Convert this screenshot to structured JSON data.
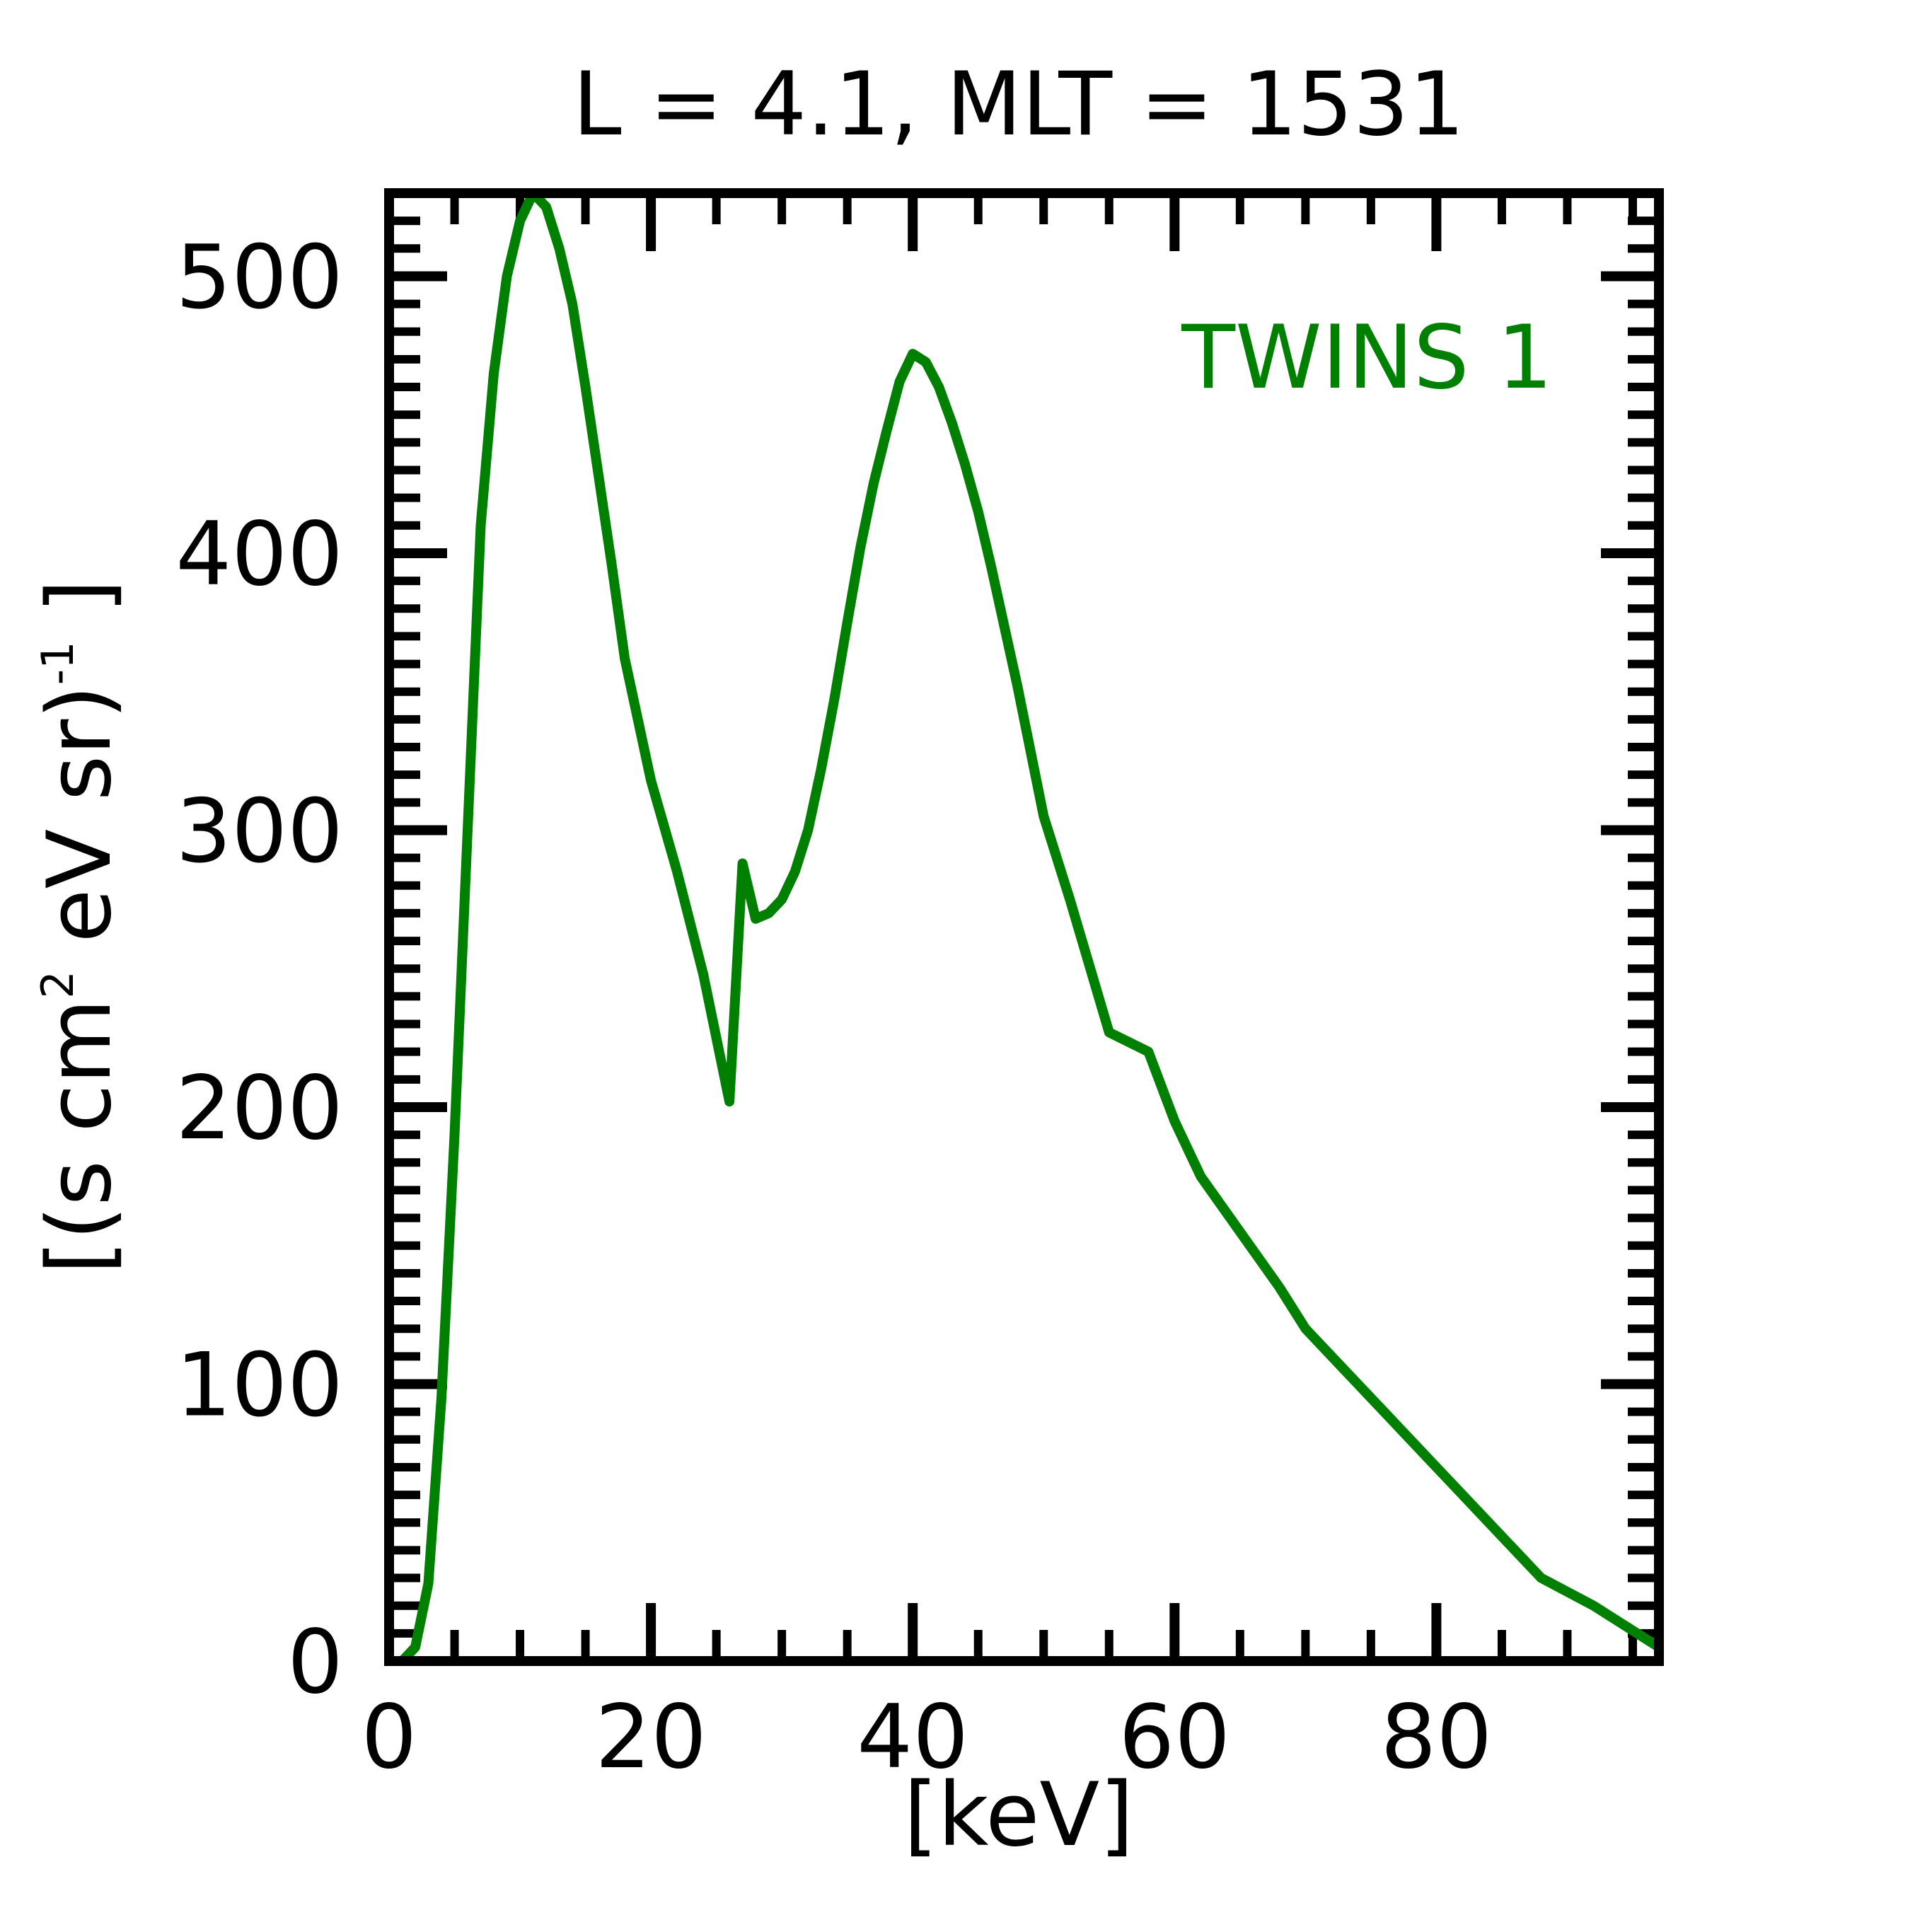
{
  "chart_data": {
    "type": "line",
    "title": "L =  4.1, MLT = 1531",
    "xlabel": "[keV]",
    "ylabel_parts": {
      "open": "[(s cm",
      "sup1": "2",
      "mid": " eV sr)",
      "sup2": "-1",
      "close": " ]"
    },
    "xlim": [
      0,
      97
    ],
    "ylim": [
      0,
      530
    ],
    "xticks": [
      0,
      20,
      40,
      60,
      80
    ],
    "xtick_labels": [
      "0",
      "20",
      "40",
      "60",
      "80"
    ],
    "yticks": [
      0,
      100,
      200,
      300,
      400,
      500
    ],
    "ytick_labels": [
      "0",
      "100",
      "200",
      "300",
      "400",
      "500"
    ],
    "legend": {
      "entries": [
        "TWINS 1"
      ],
      "placement": "top-right"
    },
    "grid": false,
    "series": [
      {
        "name": "TWINS 1",
        "color": "#008000",
        "x": [
          1,
          2,
          3,
          4,
          5,
          6,
          7,
          8,
          9,
          10,
          11,
          12,
          13,
          14,
          15,
          16,
          17,
          18,
          20,
          22,
          24,
          25,
          26,
          27,
          28,
          29,
          30,
          31,
          32,
          33,
          34,
          35,
          36,
          37,
          38,
          39,
          40,
          41,
          42,
          43,
          44,
          45,
          46,
          48,
          50,
          52,
          55,
          58,
          60,
          62,
          65,
          68,
          70,
          73,
          76,
          80,
          84,
          88,
          92,
          96,
          97
        ],
        "y": [
          0,
          5,
          28,
          95,
          190,
          300,
          410,
          465,
          500,
          520,
          530,
          525,
          510,
          490,
          460,
          428,
          396,
          362,
          318,
          285,
          248,
          225,
          202,
          288,
          268,
          270,
          275,
          285,
          300,
          322,
          347,
          375,
          402,
          425,
          444,
          462,
          472,
          469,
          460,
          447,
          432,
          415,
          395,
          352,
          305,
          275,
          227,
          220,
          195,
          175,
          155,
          135,
          120,
          105,
          90,
          70,
          50,
          30,
          20,
          8,
          5
        ]
      }
    ]
  }
}
